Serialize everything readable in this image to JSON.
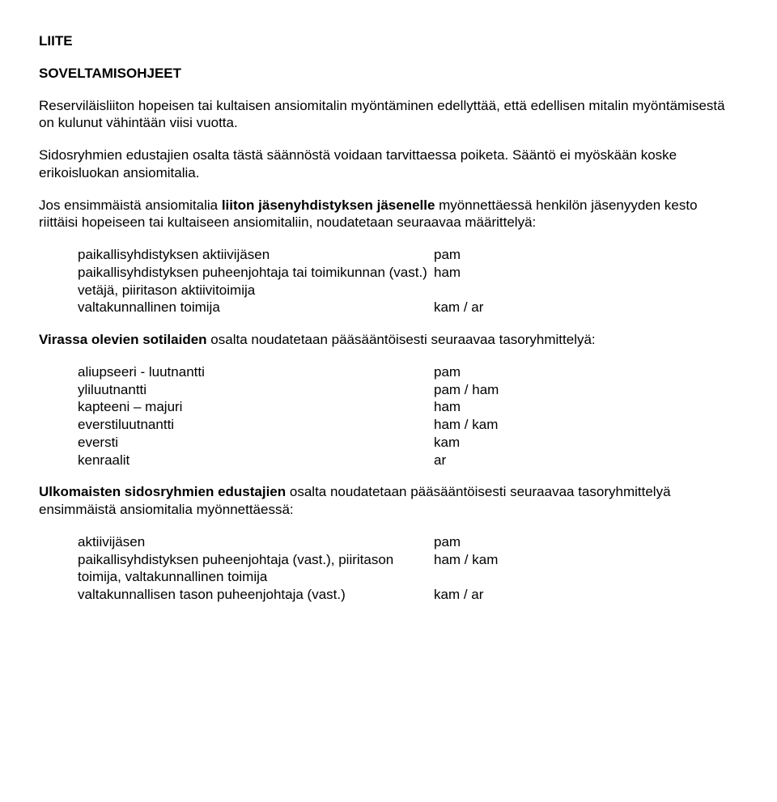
{
  "title": "LIITE",
  "subtitle": "SOVELTAMISOHJEET",
  "para1a": "Reserviläisliiton hopeisen tai kultaisen ansiomitalin myöntäminen edellyttää, että edellisen mitalin myöntämisestä on kulunut vähintään viisi vuotta.",
  "para1b": "Sidosryhmien edustajien osalta tästä säännöstä voidaan tarvittaessa poiketa. Sääntö ei myöskään koske erikoisluokan ansiomitalia.",
  "para2_pre": "Jos ensimmäistä ansiomitalia ",
  "para2_bold": "liiton jäsenyhdistyksen jäsenelle",
  "para2_post": " myönnettäessä henkilön jäsenyyden kesto riittäisi hopeiseen tai kultaiseen ansiomitaliin, noudatetaan seuraavaa määrittelyä:",
  "tableA": [
    {
      "left": "paikallisyhdistyksen aktiivijäsen",
      "right": "pam"
    },
    {
      "left": "paikallisyhdistyksen puheenjohtaja tai toimikunnan (vast.) vetäjä, piiritason aktiivitoimija",
      "right": "ham"
    },
    {
      "left": "valtakunnallinen toimija",
      "right": "kam / ar"
    }
  ],
  "para3_bold": "Virassa olevien sotilaiden",
  "para3_post": " osalta noudatetaan pääsääntöisesti seuraavaa tasoryhmittelyä:",
  "tableB": [
    {
      "left": "aliupseeri - luutnantti",
      "right": "pam"
    },
    {
      "left": "yliluutnantti",
      "right": "pam / ham"
    },
    {
      "left": "kapteeni – majuri",
      "right": "ham"
    },
    {
      "left": "everstiluutnantti",
      "right": "ham / kam"
    },
    {
      "left": "eversti",
      "right": "kam"
    },
    {
      "left": "kenraalit",
      "right": "ar"
    }
  ],
  "para4_bold": "Ulkomaisten sidosryhmien edustajien",
  "para4_post": " osalta noudatetaan pääsääntöisesti seuraavaa tasoryhmittelyä ensimmäistä ansiomitalia myönnettäessä:",
  "tableC": [
    {
      "left": "aktiivijäsen",
      "right": "pam"
    },
    {
      "left": "paikallisyhdistyksen puheenjohtaja (vast.), piiritason toimija, valtakunnallinen toimija",
      "right": "ham / kam"
    },
    {
      "left": "valtakunnallisen tason puheenjohtaja (vast.)",
      "right": "kam / ar"
    }
  ]
}
